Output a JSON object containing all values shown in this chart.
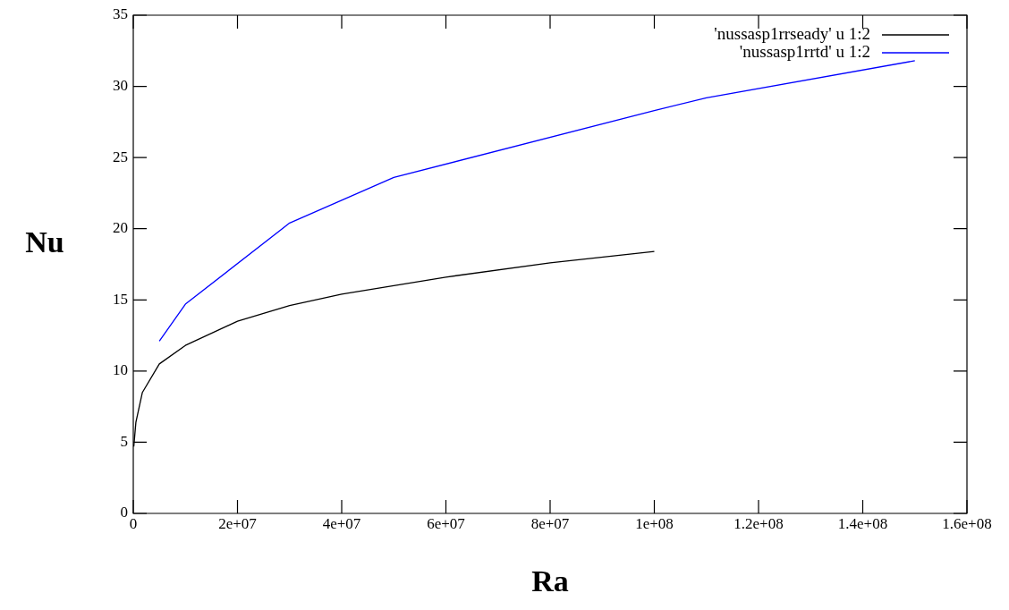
{
  "chart_data": {
    "type": "line",
    "xlabel": "Ra",
    "ylabel": "Nu",
    "xlim": [
      0,
      160000000
    ],
    "ylim": [
      0,
      35
    ],
    "xticks": [
      0,
      {
        "value": 20000000,
        "label": "2e+07"
      },
      {
        "value": 40000000,
        "label": "4e+07"
      },
      {
        "value": 60000000,
        "label": "6e+07"
      },
      {
        "value": 80000000,
        "label": "8e+07"
      },
      {
        "value": 100000000,
        "label": "1e+08"
      },
      {
        "value": 120000000,
        "label": "1.2e+08"
      },
      {
        "value": 140000000,
        "label": "1.4e+08"
      },
      {
        "value": 160000000,
        "label": "1.6e+08"
      }
    ],
    "yticks": [
      0,
      5,
      10,
      15,
      20,
      25,
      30,
      35
    ],
    "grid": false,
    "legend": "top right",
    "marker": "none",
    "line_style": "solid",
    "series": [
      {
        "name": "'nussasp1rrseady' u 1:2",
        "color": "#000000",
        "x": [
          100000,
          500000,
          1750000,
          5000000,
          10000000,
          20000000,
          30000000,
          40000000,
          60000000,
          80000000,
          100000000
        ],
        "values": [
          4.7,
          6.4,
          8.5,
          10.5,
          11.8,
          13.5,
          14.6,
          15.4,
          16.6,
          17.6,
          18.4
        ]
      },
      {
        "name": "'nussasp1rrtd' u 1:2",
        "color": "#0000ff",
        "x": [
          5000000,
          10000000,
          30000000,
          50000000,
          100000000,
          110000000,
          150000000
        ],
        "values": [
          12.1,
          14.7,
          20.4,
          23.6,
          28.3,
          29.2,
          31.8
        ]
      }
    ]
  }
}
